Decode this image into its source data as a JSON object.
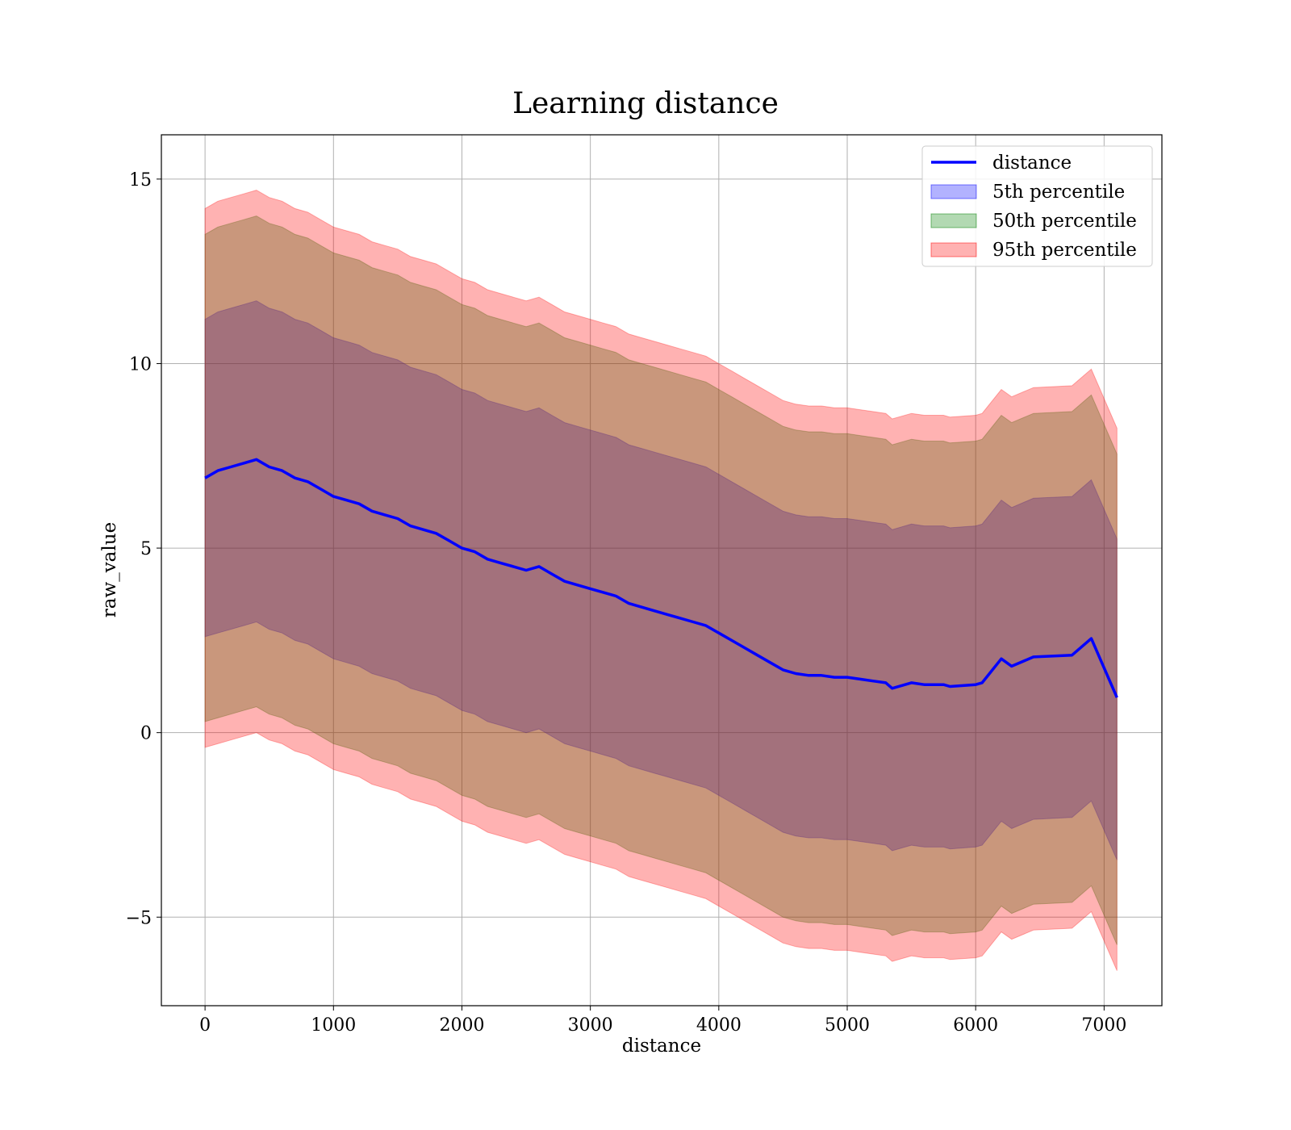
{
  "chart_data": {
    "type": "area",
    "title": "Learning distance",
    "xlabel": "distance",
    "ylabel": "raw_value",
    "xlim": [
      -340,
      7450
    ],
    "ylim": [
      -7.4,
      16.2
    ],
    "xticks": [
      0,
      1000,
      2000,
      3000,
      4000,
      5000,
      6000,
      7000
    ],
    "xtick_labels": [
      "0",
      "1000",
      "2000",
      "3000",
      "4000",
      "5000",
      "6000",
      "7000"
    ],
    "yticks": [
      -5,
      0,
      5,
      10,
      15
    ],
    "ytick_labels": [
      "−5",
      "0",
      "5",
      "10",
      "15"
    ],
    "grid": true,
    "legend_position": "top-right",
    "x": [
      0,
      100,
      200,
      300,
      400,
      500,
      600,
      700,
      800,
      900,
      1000,
      1100,
      1200,
      1300,
      1400,
      1500,
      1600,
      1700,
      1800,
      1900,
      2000,
      2100,
      2200,
      2300,
      2400,
      2500,
      2600,
      2700,
      2800,
      2900,
      3000,
      3100,
      3200,
      3300,
      3400,
      3500,
      3600,
      3700,
      3800,
      3900,
      4000,
      4100,
      4200,
      4300,
      4400,
      4500,
      4600,
      4700,
      4800,
      4900,
      5000,
      5100,
      5200,
      5300,
      5350,
      5500,
      5600,
      5700,
      5750,
      5800,
      6000,
      6050,
      6200,
      6280,
      6450,
      6750,
      6900,
      7100
    ],
    "series": [
      {
        "name": "distance",
        "type": "line",
        "color": "#0000ff",
        "values": [
          6.9,
          7.1,
          7.2,
          7.3,
          7.4,
          7.2,
          7.1,
          6.9,
          6.8,
          6.6,
          6.4,
          6.3,
          6.2,
          6.0,
          5.9,
          5.8,
          5.6,
          5.5,
          5.4,
          5.2,
          5.0,
          4.9,
          4.7,
          4.6,
          4.5,
          4.4,
          4.5,
          4.3,
          4.1,
          4.0,
          3.9,
          3.8,
          3.7,
          3.5,
          3.4,
          3.3,
          3.2,
          3.1,
          3.0,
          2.9,
          2.7,
          2.5,
          2.3,
          2.1,
          1.9,
          1.7,
          1.6,
          1.55,
          1.55,
          1.5,
          1.5,
          1.45,
          1.4,
          1.35,
          1.2,
          1.35,
          1.3,
          1.3,
          1.3,
          1.25,
          1.3,
          1.35,
          2.0,
          1.8,
          2.05,
          2.1,
          2.55,
          0.95
        ]
      },
      {
        "name": "5th percentile",
        "type": "band",
        "color": "#0000ff",
        "opacity": 0.3,
        "lower": [
          2.6,
          2.7,
          2.8,
          2.9,
          3.0,
          2.8,
          2.7,
          2.5,
          2.4,
          2.2,
          2.0,
          1.9,
          1.8,
          1.6,
          1.5,
          1.4,
          1.2,
          1.1,
          1.0,
          0.8,
          0.6,
          0.5,
          0.3,
          0.2,
          0.1,
          0.0,
          0.1,
          -0.1,
          -0.3,
          -0.4,
          -0.5,
          -0.6,
          -0.7,
          -0.9,
          -1.0,
          -1.1,
          -1.2,
          -1.3,
          -1.4,
          -1.5,
          -1.7,
          -1.9,
          -2.1,
          -2.3,
          -2.5,
          -2.7,
          -2.8,
          -2.85,
          -2.85,
          -2.9,
          -2.9,
          -2.95,
          -3.0,
          -3.05,
          -3.2,
          -3.05,
          -3.1,
          -3.1,
          -3.1,
          -3.15,
          -3.1,
          -3.05,
          -2.4,
          -2.6,
          -2.35,
          -2.3,
          -1.85,
          -3.45
        ],
        "upper": [
          11.2,
          11.4,
          11.5,
          11.6,
          11.7,
          11.5,
          11.4,
          11.2,
          11.1,
          10.9,
          10.7,
          10.6,
          10.5,
          10.3,
          10.2,
          10.1,
          9.9,
          9.8,
          9.7,
          9.5,
          9.3,
          9.2,
          9.0,
          8.9,
          8.8,
          8.7,
          8.8,
          8.6,
          8.4,
          8.3,
          8.2,
          8.1,
          8.0,
          7.8,
          7.7,
          7.6,
          7.5,
          7.4,
          7.3,
          7.2,
          7.0,
          6.8,
          6.6,
          6.4,
          6.2,
          6.0,
          5.9,
          5.85,
          5.85,
          5.8,
          5.8,
          5.75,
          5.7,
          5.65,
          5.5,
          5.65,
          5.6,
          5.6,
          5.6,
          5.55,
          5.6,
          5.65,
          6.3,
          6.1,
          6.35,
          6.4,
          6.85,
          5.25
        ]
      },
      {
        "name": "50th percentile",
        "type": "band",
        "color": "#008000",
        "opacity": 0.3,
        "lower": [
          0.3,
          0.4,
          0.5,
          0.6,
          0.7,
          0.5,
          0.4,
          0.2,
          0.1,
          -0.1,
          -0.3,
          -0.4,
          -0.5,
          -0.7,
          -0.8,
          -0.9,
          -1.1,
          -1.2,
          -1.3,
          -1.5,
          -1.7,
          -1.8,
          -2.0,
          -2.1,
          -2.2,
          -2.3,
          -2.2,
          -2.4,
          -2.6,
          -2.7,
          -2.8,
          -2.9,
          -3.0,
          -3.2,
          -3.3,
          -3.4,
          -3.5,
          -3.6,
          -3.7,
          -3.8,
          -4.0,
          -4.2,
          -4.4,
          -4.6,
          -4.8,
          -5.0,
          -5.1,
          -5.15,
          -5.15,
          -5.2,
          -5.2,
          -5.25,
          -5.3,
          -5.35,
          -5.5,
          -5.35,
          -5.4,
          -5.4,
          -5.4,
          -5.45,
          -5.4,
          -5.35,
          -4.7,
          -4.9,
          -4.65,
          -4.6,
          -4.15,
          -5.75
        ],
        "upper": [
          13.5,
          13.7,
          13.8,
          13.9,
          14.0,
          13.8,
          13.7,
          13.5,
          13.4,
          13.2,
          13.0,
          12.9,
          12.8,
          12.6,
          12.5,
          12.4,
          12.2,
          12.1,
          12.0,
          11.8,
          11.6,
          11.5,
          11.3,
          11.2,
          11.1,
          11.0,
          11.1,
          10.9,
          10.7,
          10.6,
          10.5,
          10.4,
          10.3,
          10.1,
          10.0,
          9.9,
          9.8,
          9.7,
          9.6,
          9.5,
          9.3,
          9.1,
          8.9,
          8.7,
          8.5,
          8.3,
          8.2,
          8.15,
          8.15,
          8.1,
          8.1,
          8.05,
          8.0,
          7.95,
          7.8,
          7.95,
          7.9,
          7.9,
          7.9,
          7.85,
          7.9,
          7.95,
          8.6,
          8.4,
          8.65,
          8.7,
          9.15,
          7.55
        ]
      },
      {
        "name": "95th percentile",
        "type": "band",
        "color": "#ff0000",
        "opacity": 0.3,
        "lower": [
          -0.4,
          -0.3,
          -0.2,
          -0.1,
          0.0,
          -0.2,
          -0.3,
          -0.5,
          -0.6,
          -0.8,
          -1.0,
          -1.1,
          -1.2,
          -1.4,
          -1.5,
          -1.6,
          -1.8,
          -1.9,
          -2.0,
          -2.2,
          -2.4,
          -2.5,
          -2.7,
          -2.8,
          -2.9,
          -3.0,
          -2.9,
          -3.1,
          -3.3,
          -3.4,
          -3.5,
          -3.6,
          -3.7,
          -3.9,
          -4.0,
          -4.1,
          -4.2,
          -4.3,
          -4.4,
          -4.5,
          -4.7,
          -4.9,
          -5.1,
          -5.3,
          -5.5,
          -5.7,
          -5.8,
          -5.85,
          -5.85,
          -5.9,
          -5.9,
          -5.95,
          -6.0,
          -6.05,
          -6.2,
          -6.05,
          -6.1,
          -6.1,
          -6.1,
          -6.15,
          -6.1,
          -6.05,
          -5.4,
          -5.6,
          -5.35,
          -5.3,
          -4.85,
          -6.45
        ],
        "upper": [
          14.2,
          14.4,
          14.5,
          14.6,
          14.7,
          14.5,
          14.4,
          14.2,
          14.1,
          13.9,
          13.7,
          13.6,
          13.5,
          13.3,
          13.2,
          13.1,
          12.9,
          12.8,
          12.7,
          12.5,
          12.3,
          12.2,
          12.0,
          11.9,
          11.8,
          11.7,
          11.8,
          11.6,
          11.4,
          11.3,
          11.2,
          11.1,
          11.0,
          10.8,
          10.7,
          10.6,
          10.5,
          10.4,
          10.3,
          10.2,
          10.0,
          9.8,
          9.6,
          9.4,
          9.2,
          9.0,
          8.9,
          8.85,
          8.85,
          8.8,
          8.8,
          8.75,
          8.7,
          8.65,
          8.5,
          8.65,
          8.6,
          8.6,
          8.6,
          8.55,
          8.6,
          8.65,
          9.3,
          9.1,
          9.35,
          9.4,
          9.85,
          8.25
        ]
      }
    ]
  }
}
